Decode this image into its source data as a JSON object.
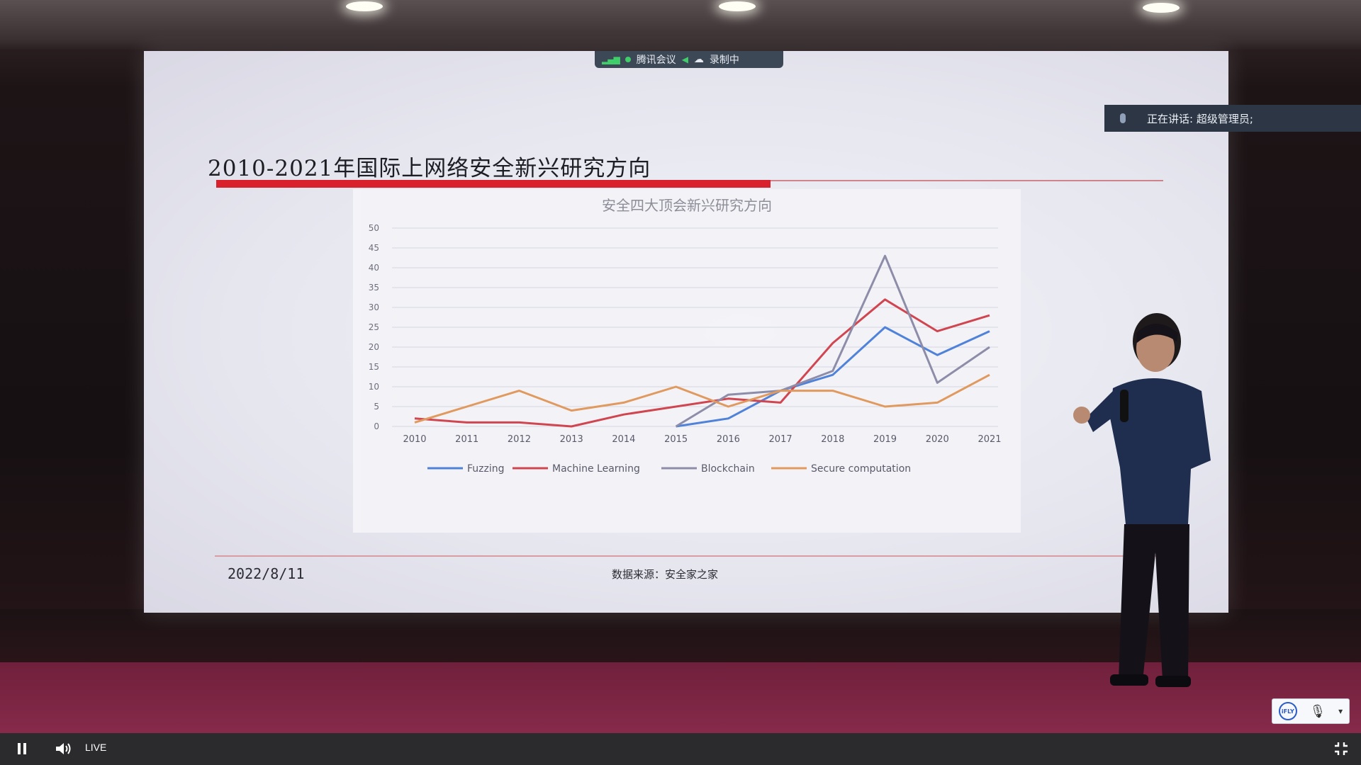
{
  "meeting_bar": {
    "app": "腾讯会议",
    "status": "录制中"
  },
  "speaking_banner": {
    "text": "正在讲话: 超级管理员;"
  },
  "slide": {
    "title": "2010-2021年国际上网络安全新兴研究方向",
    "date": "2022/8/11",
    "source": "数据来源：安全家之家"
  },
  "chart_data": {
    "type": "line",
    "title": "安全四大顶会新兴研究方向",
    "x": [
      "2010",
      "2011",
      "2012",
      "2013",
      "2014",
      "2015",
      "2016",
      "2017",
      "2018",
      "2019",
      "2020",
      "2021"
    ],
    "ylim": [
      0,
      50
    ],
    "yticks": [
      0,
      5,
      10,
      15,
      20,
      25,
      30,
      35,
      40,
      45,
      50
    ],
    "grid": true,
    "legend_position": "bottom",
    "series": [
      {
        "name": "Fuzzing",
        "color": "#4a7fd8",
        "values": [
          null,
          null,
          null,
          null,
          null,
          0,
          2,
          9,
          13,
          25,
          18,
          24
        ]
      },
      {
        "name": "Machine Learning",
        "color": "#d0414b",
        "values": [
          2,
          1,
          1,
          0,
          3,
          5,
          7,
          6,
          21,
          32,
          24,
          28
        ]
      },
      {
        "name": "Blockchain",
        "color": "#8a8aa8",
        "values": [
          null,
          null,
          null,
          null,
          null,
          0,
          8,
          9,
          14,
          43,
          11,
          20
        ]
      },
      {
        "name": "Secure computation",
        "color": "#e0975a",
        "values": [
          1,
          5,
          9,
          4,
          6,
          10,
          5,
          9,
          9,
          5,
          6,
          13
        ]
      }
    ]
  },
  "player": {
    "live_label": "LIVE"
  },
  "ifly": {
    "logo": "iFLY"
  }
}
